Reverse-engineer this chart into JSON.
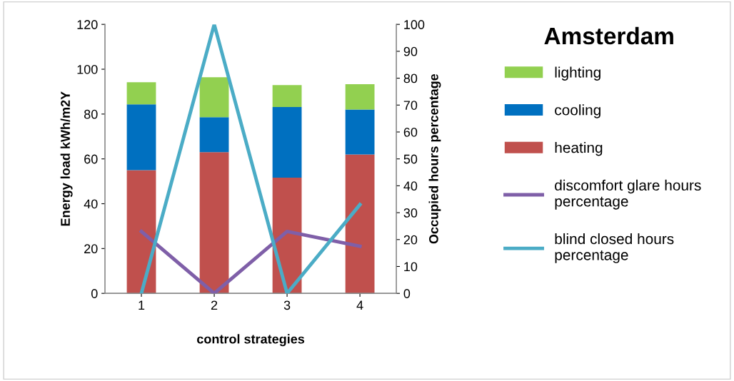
{
  "chart_data": {
    "type": "bar",
    "title": "Amsterdam",
    "xlabel": "control strategies",
    "ylabel": "Energy load kWh/m2Y",
    "y2label": "Occupied hours percentage",
    "categories": [
      "1",
      "2",
      "3",
      "4"
    ],
    "stacked": true,
    "series": [
      {
        "name": "heating",
        "color": "#c0504d",
        "values": [
          55,
          63,
          51.6,
          62
        ]
      },
      {
        "name": "cooling",
        "color": "#0070c0",
        "values": [
          29.3,
          15.6,
          31.5,
          20
        ]
      },
      {
        "name": "lighting",
        "color": "#92d050",
        "values": [
          9.9,
          17.8,
          9.8,
          11.3
        ]
      },
      {
        "name": "discomfort glare hours percentage",
        "type": "line",
        "axis": "y2",
        "color": "#7f5fa8",
        "values": [
          23,
          0,
          23,
          17.5
        ]
      },
      {
        "name": "blind closed hours percentage",
        "type": "line",
        "axis": "y2",
        "color": "#4bacc6",
        "values": [
          0,
          100,
          0,
          33
        ]
      }
    ],
    "ylim": [
      0,
      120
    ],
    "yticks": [
      0,
      20,
      40,
      60,
      80,
      100,
      120
    ],
    "y2lim": [
      0,
      100
    ],
    "y2ticks": [
      0,
      10,
      20,
      30,
      40,
      50,
      60,
      70,
      80,
      90,
      100
    ],
    "grid": false,
    "legend": "right",
    "marker": "none"
  }
}
